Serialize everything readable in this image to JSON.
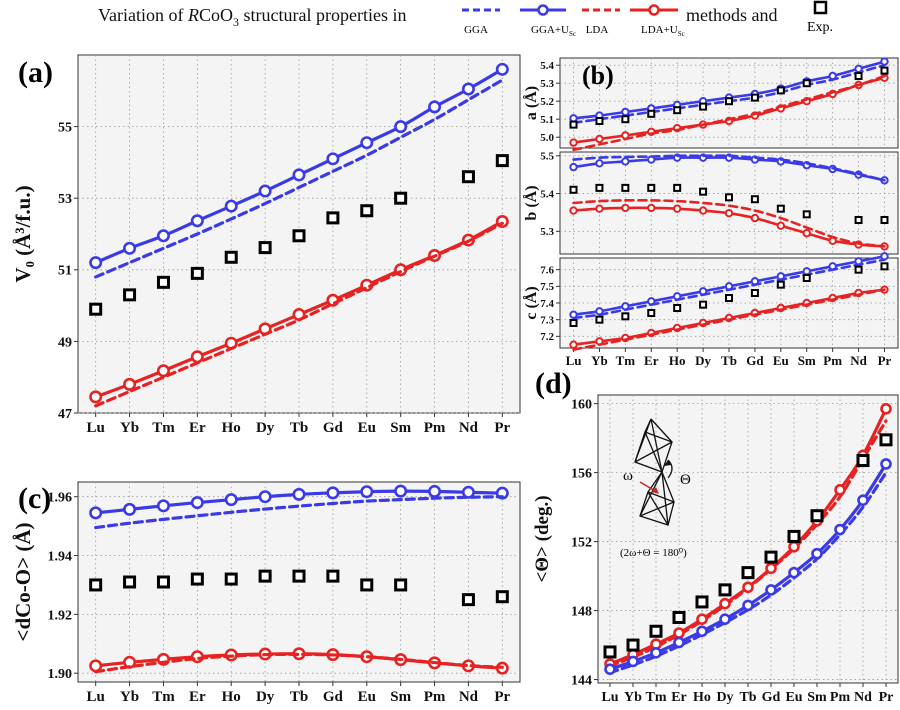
{
  "header": {
    "prefix": "Variation of ",
    "formula_R": "R",
    "formula_rest": "CoO",
    "formula_sub": "3",
    "suffix": " structural properties in",
    "methods_and": "methods and",
    "legend": [
      {
        "name": "GGA",
        "style": "dashed",
        "color": "#3a3ae6",
        "markers": false
      },
      {
        "name": "GGA+U",
        "sub": "Sc",
        "style": "solid",
        "color": "#3a3ae6",
        "markers": true
      },
      {
        "name": "LDA",
        "style": "dashed",
        "color": "#e62222",
        "markers": false
      },
      {
        "name": "LDA+U",
        "sub": "Sc",
        "style": "solid",
        "color": "#e62222",
        "markers": true
      },
      {
        "name": "Exp.",
        "style": "square",
        "color": "#000000",
        "markers": true
      }
    ]
  },
  "colors": {
    "blue": "#3a3ae6",
    "red": "#e62222",
    "exp": "#000000",
    "panel_bg": "#f4f4f4"
  },
  "inset": {
    "omega": "ω",
    "theta": "Θ",
    "relation": "(2ω+Θ = 180⁰)"
  },
  "chart_data": [
    {
      "id": "a",
      "panel_label": "(a)",
      "type": "line",
      "categories": [
        "Lu",
        "Yb",
        "Tm",
        "Er",
        "Ho",
        "Dy",
        "Tb",
        "Gd",
        "Eu",
        "Sm",
        "Pm",
        "Nd",
        "Pr"
      ],
      "ylabel": "V₀ (Å³/f.u.)",
      "ylim": [
        47,
        57
      ],
      "yticks": [
        47,
        49,
        51,
        53,
        55
      ],
      "series": [
        {
          "name": "GGA+Usc",
          "style": "solid",
          "color": "#3a3ae6",
          "markers": true,
          "values": [
            51.2,
            51.6,
            51.95,
            52.37,
            52.78,
            53.2,
            53.65,
            54.1,
            54.55,
            55.0,
            55.55,
            56.05,
            56.6
          ]
        },
        {
          "name": "GGA",
          "style": "dashed",
          "color": "#3a3ae6",
          "markers": false,
          "values": [
            50.8,
            51.2,
            51.6,
            52.0,
            52.42,
            52.85,
            53.3,
            53.75,
            54.2,
            54.7,
            55.2,
            55.75,
            56.3
          ]
        },
        {
          "name": "LDA+Usc",
          "style": "solid",
          "color": "#e62222",
          "markers": true,
          "values": [
            47.45,
            47.8,
            48.18,
            48.57,
            48.95,
            49.35,
            49.75,
            50.15,
            50.57,
            51.0,
            51.4,
            51.83,
            52.35
          ]
        },
        {
          "name": "LDA",
          "style": "dashed",
          "color": "#e62222",
          "markers": false,
          "values": [
            47.2,
            47.6,
            48.0,
            48.4,
            48.8,
            49.2,
            49.6,
            50.05,
            50.5,
            50.95,
            51.38,
            51.8,
            52.3
          ]
        },
        {
          "name": "Exp.",
          "style": "square",
          "color": "#000000",
          "values": [
            49.9,
            50.3,
            50.65,
            50.9,
            51.35,
            51.62,
            51.95,
            52.45,
            52.65,
            53.0,
            null,
            53.6,
            54.05
          ]
        }
      ]
    },
    {
      "id": "b_a",
      "panel_label": "(b)",
      "type": "line",
      "categories": [
        "Lu",
        "Yb",
        "Tm",
        "Er",
        "Ho",
        "Dy",
        "Tb",
        "Gd",
        "Eu",
        "Sm",
        "Pm",
        "Nd",
        "Pr"
      ],
      "ylabel": "a (Å)",
      "ylim": [
        4.94,
        5.44
      ],
      "yticks": [
        5.0,
        5.1,
        5.2,
        5.3,
        5.4
      ],
      "series": [
        {
          "name": "GGA+Usc",
          "style": "solid",
          "color": "#3a3ae6",
          "markers": true,
          "values": [
            5.105,
            5.12,
            5.14,
            5.16,
            5.18,
            5.2,
            5.22,
            5.24,
            5.27,
            5.31,
            5.34,
            5.38,
            5.42
          ]
        },
        {
          "name": "GGA",
          "style": "dashed",
          "color": "#3a3ae6",
          "markers": false,
          "values": [
            5.08,
            5.1,
            5.12,
            5.14,
            5.16,
            5.18,
            5.2,
            5.22,
            5.25,
            5.29,
            5.32,
            5.36,
            5.4
          ]
        },
        {
          "name": "LDA+Usc",
          "style": "solid",
          "color": "#e62222",
          "markers": true,
          "values": [
            4.97,
            4.99,
            5.01,
            5.03,
            5.05,
            5.07,
            5.09,
            5.12,
            5.16,
            5.2,
            5.24,
            5.29,
            5.33
          ]
        },
        {
          "name": "LDA",
          "style": "dashed",
          "color": "#e62222",
          "markers": false,
          "values": [
            4.93,
            4.96,
            4.99,
            5.02,
            5.04,
            5.07,
            5.1,
            5.13,
            5.17,
            5.21,
            5.25,
            5.29,
            5.34
          ]
        },
        {
          "name": "Exp.",
          "style": "square",
          "color": "#000000",
          "values": [
            5.07,
            5.09,
            5.1,
            5.13,
            5.15,
            5.17,
            5.2,
            5.22,
            5.26,
            5.3,
            null,
            5.34,
            5.37
          ]
        }
      ]
    },
    {
      "id": "b_b",
      "panel_label": "",
      "type": "line",
      "categories": [
        "Lu",
        "Yb",
        "Tm",
        "Er",
        "Ho",
        "Dy",
        "Tb",
        "Gd",
        "Eu",
        "Sm",
        "Pm",
        "Nd",
        "Pr"
      ],
      "ylabel": "b (Å)",
      "ylim": [
        5.24,
        5.51
      ],
      "yticks": [
        5.3,
        5.4,
        5.5
      ],
      "series": [
        {
          "name": "GGA+Usc",
          "style": "solid",
          "color": "#3a3ae6",
          "markers": true,
          "values": [
            5.47,
            5.48,
            5.485,
            5.49,
            5.495,
            5.495,
            5.495,
            5.49,
            5.485,
            5.475,
            5.465,
            5.45,
            5.435
          ]
        },
        {
          "name": "GGA",
          "style": "dashed",
          "color": "#3a3ae6",
          "markers": false,
          "values": [
            5.49,
            5.495,
            5.497,
            5.498,
            5.5,
            5.5,
            5.5,
            5.495,
            5.49,
            5.48,
            5.467,
            5.452,
            5.435
          ]
        },
        {
          "name": "LDA+Usc",
          "style": "solid",
          "color": "#e62222",
          "markers": true,
          "values": [
            5.355,
            5.36,
            5.362,
            5.362,
            5.36,
            5.355,
            5.348,
            5.335,
            5.315,
            5.295,
            5.275,
            5.265,
            5.26
          ]
        },
        {
          "name": "LDA",
          "style": "dashed",
          "color": "#e62222",
          "markers": false,
          "values": [
            5.375,
            5.38,
            5.382,
            5.382,
            5.38,
            5.375,
            5.368,
            5.355,
            5.335,
            5.31,
            5.285,
            5.268,
            5.26
          ]
        },
        {
          "name": "Exp.",
          "style": "square",
          "color": "#000000",
          "values": [
            5.41,
            5.415,
            5.415,
            5.415,
            5.415,
            5.405,
            5.39,
            5.385,
            5.36,
            5.345,
            null,
            5.33,
            5.33
          ]
        }
      ]
    },
    {
      "id": "b_c",
      "panel_label": "",
      "type": "line",
      "categories": [
        "Lu",
        "Yb",
        "Tm",
        "Er",
        "Ho",
        "Dy",
        "Tb",
        "Gd",
        "Eu",
        "Sm",
        "Pm",
        "Nd",
        "Pr"
      ],
      "ylabel": "c (Å)",
      "ylim": [
        7.13,
        7.67
      ],
      "yticks": [
        7.2,
        7.3,
        7.4,
        7.5,
        7.6
      ],
      "series": [
        {
          "name": "GGA+Usc",
          "style": "solid",
          "color": "#3a3ae6",
          "markers": true,
          "values": [
            7.33,
            7.35,
            7.38,
            7.41,
            7.44,
            7.47,
            7.5,
            7.53,
            7.56,
            7.59,
            7.62,
            7.65,
            7.68
          ]
        },
        {
          "name": "GGA",
          "style": "dashed",
          "color": "#3a3ae6",
          "markers": false,
          "values": [
            7.31,
            7.33,
            7.36,
            7.39,
            7.42,
            7.45,
            7.48,
            7.51,
            7.54,
            7.57,
            7.6,
            7.63,
            7.66
          ]
        },
        {
          "name": "LDA+Usc",
          "style": "solid",
          "color": "#e62222",
          "markers": true,
          "values": [
            7.15,
            7.17,
            7.19,
            7.22,
            7.25,
            7.28,
            7.31,
            7.34,
            7.37,
            7.4,
            7.43,
            7.46,
            7.48
          ]
        },
        {
          "name": "LDA",
          "style": "dashed",
          "color": "#e62222",
          "markers": false,
          "values": [
            7.12,
            7.15,
            7.18,
            7.21,
            7.24,
            7.27,
            7.3,
            7.33,
            7.36,
            7.39,
            7.42,
            7.45,
            7.48
          ]
        },
        {
          "name": "Exp.",
          "style": "square",
          "color": "#000000",
          "values": [
            7.28,
            7.3,
            7.32,
            7.34,
            7.37,
            7.39,
            7.43,
            7.46,
            7.51,
            7.55,
            null,
            7.6,
            7.62
          ]
        }
      ]
    },
    {
      "id": "c",
      "panel_label": "(c)",
      "type": "line",
      "categories": [
        "Lu",
        "Yb",
        "Tm",
        "Er",
        "Ho",
        "Dy",
        "Tb",
        "Gd",
        "Eu",
        "Sm",
        "Pm",
        "Nd",
        "Pr"
      ],
      "ylabel": "<dCo-O> (Å)",
      "ylim": [
        1.897,
        1.965
      ],
      "yticks": [
        1.9,
        1.92,
        1.94,
        1.96
      ],
      "series": [
        {
          "name": "GGA+Usc",
          "style": "solid",
          "color": "#3a3ae6",
          "markers": true,
          "values": [
            1.9545,
            1.9557,
            1.9569,
            1.958,
            1.959,
            1.96,
            1.9608,
            1.9613,
            1.9617,
            1.9619,
            1.9618,
            1.9615,
            1.9612
          ]
        },
        {
          "name": "GGA",
          "style": "dashed",
          "color": "#3a3ae6",
          "markers": false,
          "values": [
            1.9495,
            1.951,
            1.9523,
            1.9535,
            1.9547,
            1.9558,
            1.9568,
            1.9577,
            1.9585,
            1.959,
            1.9595,
            1.9598,
            1.96
          ]
        },
        {
          "name": "LDA+Usc",
          "style": "solid",
          "color": "#e62222",
          "markers": true,
          "values": [
            1.9025,
            1.9037,
            1.9047,
            1.9056,
            1.9062,
            1.9065,
            1.9066,
            1.9063,
            1.9056,
            1.9046,
            1.9035,
            1.9025,
            1.9017
          ]
        },
        {
          "name": "LDA",
          "style": "dashed",
          "color": "#e62222",
          "markers": false,
          "values": [
            1.9005,
            1.9022,
            1.9037,
            1.905,
            1.9058,
            1.9063,
            1.9064,
            1.9062,
            1.9056,
            1.9047,
            1.9036,
            1.9026,
            1.902
          ]
        },
        {
          "name": "Exp.",
          "style": "square",
          "color": "#000000",
          "values": [
            1.93,
            1.931,
            1.931,
            1.932,
            1.932,
            1.933,
            1.933,
            1.933,
            1.93,
            1.93,
            null,
            1.925,
            1.926
          ]
        }
      ]
    },
    {
      "id": "d",
      "panel_label": "(d)",
      "type": "line",
      "categories": [
        "Lu",
        "Yb",
        "Tm",
        "Er",
        "Ho",
        "Dy",
        "Tb",
        "Gd",
        "Eu",
        "Sm",
        "Pm",
        "Nd",
        "Pr"
      ],
      "ylabel": "<Θ> (deg.)",
      "ylim": [
        143.8,
        160.5
      ],
      "yticks": [
        144,
        148,
        152,
        156,
        160
      ],
      "series": [
        {
          "name": "LDA",
          "style": "dashed",
          "color": "#e62222",
          "markers": false,
          "values": [
            144.8,
            145.3,
            145.9,
            146.6,
            147.4,
            148.3,
            149.3,
            150.4,
            151.6,
            153.0,
            154.6,
            156.8,
            159.0
          ]
        },
        {
          "name": "LDA+Usc",
          "style": "solid",
          "color": "#e62222",
          "markers": true,
          "values": [
            144.9,
            145.45,
            146.05,
            146.7,
            147.5,
            148.4,
            149.35,
            150.45,
            151.7,
            153.2,
            155.0,
            157.0,
            159.7
          ]
        },
        {
          "name": "GGA",
          "style": "dashed",
          "color": "#3a3ae6",
          "markers": false,
          "values": [
            144.4,
            144.85,
            145.35,
            145.95,
            146.6,
            147.3,
            148.05,
            148.9,
            149.9,
            151.0,
            152.4,
            154.0,
            156.0
          ]
        },
        {
          "name": "GGA+Usc",
          "style": "solid",
          "color": "#3a3ae6",
          "markers": true,
          "values": [
            144.6,
            145.05,
            145.55,
            146.15,
            146.8,
            147.5,
            148.3,
            149.2,
            150.2,
            151.3,
            152.7,
            154.4,
            156.5
          ]
        },
        {
          "name": "Exp.",
          "style": "square",
          "color": "#000000",
          "values": [
            145.6,
            146.0,
            146.8,
            147.6,
            148.5,
            149.2,
            150.2,
            151.1,
            152.3,
            153.5,
            null,
            156.7,
            157.9
          ]
        }
      ]
    }
  ]
}
